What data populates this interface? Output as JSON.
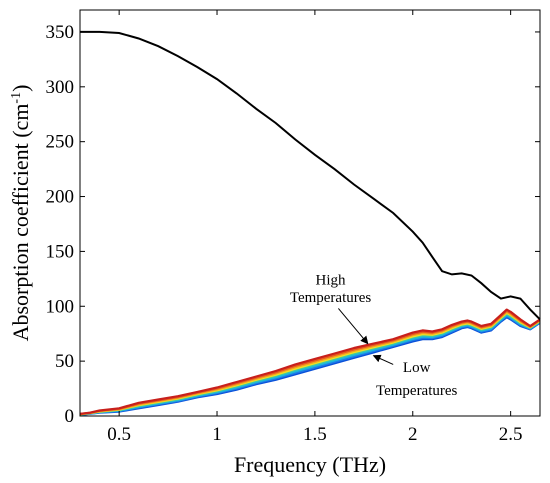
{
  "chart_data": {
    "type": "line",
    "title": "",
    "xlabel": "Frequency (THz)",
    "ylabel": "Absorption coefficient (cm",
    "ylabel_sup": "-1",
    "ylabel_close": ")",
    "xlim": [
      0.3,
      2.65
    ],
    "ylim": [
      0,
      370
    ],
    "xticks": [
      0.5,
      1,
      1.5,
      2,
      2.5
    ],
    "xtick_labels": [
      "0.5",
      "1",
      "1.5",
      "2",
      "2.5"
    ],
    "yticks": [
      0,
      50,
      100,
      150,
      200,
      250,
      300,
      350
    ],
    "ytick_labels": [
      "0",
      "50",
      "100",
      "150",
      "200",
      "250",
      "300",
      "350"
    ],
    "grid": false,
    "colors": {
      "black_curve": "#000000",
      "band": [
        "#0a50d8",
        "#1e78e8",
        "#19b4e0",
        "#3cc8a8",
        "#f0e020",
        "#f4a020",
        "#e85a1c",
        "#c8201c"
      ]
    },
    "series": [
      {
        "x": [
          0.3,
          0.4,
          0.5,
          0.6,
          0.7,
          0.8,
          0.9,
          1.0,
          1.1,
          1.2,
          1.3,
          1.4,
          1.5,
          1.6,
          1.7,
          1.8,
          1.9,
          2.0,
          2.05,
          2.1,
          2.15,
          2.2,
          2.25,
          2.3,
          2.35,
          2.4,
          2.45,
          2.5,
          2.55,
          2.6,
          2.65
        ],
        "y": [
          350,
          350,
          349,
          344,
          337,
          328,
          318,
          307,
          294,
          280,
          267,
          252,
          238,
          225,
          211,
          198,
          185,
          168,
          158,
          145,
          132,
          129,
          130,
          128,
          121,
          113,
          107,
          109,
          107,
          97,
          88
        ]
      },
      {
        "x": [
          0.3,
          0.35,
          0.4,
          0.5,
          0.6,
          0.7,
          0.8,
          0.9,
          1.0,
          1.1,
          1.2,
          1.3,
          1.4,
          1.5,
          1.6,
          1.7,
          1.8,
          1.9,
          2.0,
          2.05,
          2.1,
          2.15,
          2.2,
          2.25,
          2.28,
          2.3,
          2.35,
          2.4,
          2.45,
          2.48,
          2.5,
          2.55,
          2.6,
          2.65
        ],
        "y": [
          2,
          3,
          5,
          7,
          12,
          15,
          18,
          22,
          26,
          31,
          36,
          41,
          47,
          52,
          57,
          62,
          66,
          70,
          76,
          78,
          77,
          79,
          83,
          86,
          87,
          86,
          82,
          84,
          92,
          97,
          95,
          88,
          82,
          88
        ]
      },
      {
        "x": [
          0.3,
          0.35,
          0.4,
          0.5,
          0.6,
          0.7,
          0.8,
          0.9,
          1.0,
          1.1,
          1.2,
          1.3,
          1.4,
          1.5,
          1.6,
          1.7,
          1.8,
          1.9,
          2.0,
          2.05,
          2.1,
          2.15,
          2.2,
          2.25,
          2.28,
          2.3,
          2.35,
          2.4,
          2.45,
          2.48,
          2.5,
          2.55,
          2.6,
          2.65
        ],
        "y": [
          1,
          2,
          3,
          4,
          7,
          10,
          13,
          17,
          20,
          24,
          29,
          33,
          38,
          43,
          48,
          53,
          58,
          63,
          68,
          70,
          70,
          72,
          76,
          80,
          81,
          80,
          76,
          78,
          86,
          90,
          88,
          82,
          79,
          85
        ]
      }
    ],
    "annotations": [
      {
        "text": "High",
        "x": 1.58,
        "y": 120
      },
      {
        "text": "Temperatures",
        "x": 1.58,
        "y": 104
      },
      {
        "text": "Low",
        "x": 2.02,
        "y": 40
      },
      {
        "text": "Temperatures",
        "x": 2.02,
        "y": 19
      }
    ]
  }
}
